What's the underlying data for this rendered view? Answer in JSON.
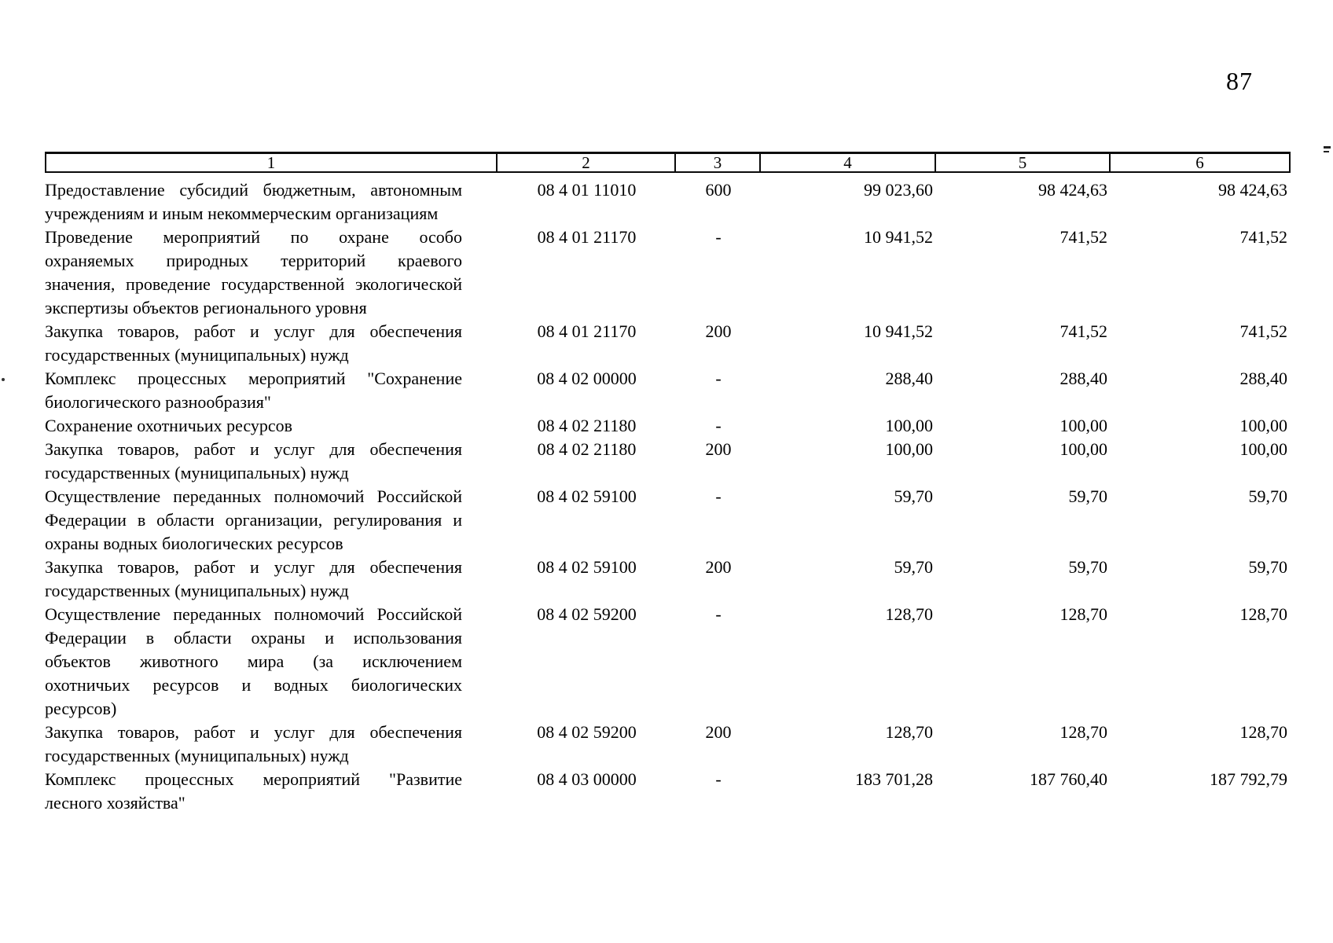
{
  "page": {
    "number": "87"
  },
  "table": {
    "header": [
      "1",
      "2",
      "3",
      "4",
      "5",
      "6"
    ],
    "rows": [
      {
        "name_lines": [
          "Предоставление субсидий бюджетным, автономным",
          "учреждениям и иным некоммерческим организациям"
        ],
        "code": "08 4 01 11010",
        "c3": "600",
        "c4": "99 023,60",
        "c5": "98 424,63",
        "c6": "98 424,63"
      },
      {
        "name_lines": [
          "Проведение мероприятий по охране особо",
          "охраняемых природных территорий краевого",
          "значения, проведение государственной экологической",
          "экспертизы объектов регионального уровня"
        ],
        "code": "08 4 01 21170",
        "c3": "-",
        "c4": "10 941,52",
        "c5": "741,52",
        "c6": "741,52"
      },
      {
        "name_lines": [
          "Закупка товаров, работ и услуг для обеспечения",
          "государственных (муниципальных) нужд"
        ],
        "code": "08 4 01 21170",
        "c3": "200",
        "c4": "10 941,52",
        "c5": "741,52",
        "c6": "741,52"
      },
      {
        "name_lines": [
          "Комплекс процессных мероприятий \"Сохранение",
          "биологического разнообразия\""
        ],
        "code": "08 4 02 00000",
        "c3": "-",
        "c4": "288,40",
        "c5": "288,40",
        "c6": "288,40"
      },
      {
        "name_lines": [
          "Сохранение охотничьих ресурсов"
        ],
        "code": "08 4 02 21180",
        "c3": "-",
        "c4": "100,00",
        "c5": "100,00",
        "c6": "100,00"
      },
      {
        "name_lines": [
          "Закупка товаров, работ и услуг для обеспечения",
          "государственных (муниципальных) нужд"
        ],
        "code": "08 4 02 21180",
        "c3": "200",
        "c4": "100,00",
        "c5": "100,00",
        "c6": "100,00"
      },
      {
        "name_lines": [
          "Осуществление переданных полномочий Российской",
          "Федерации в области организации, регулирования и",
          "охраны водных биологических ресурсов"
        ],
        "code": "08 4 02 59100",
        "c3": "-",
        "c4": "59,70",
        "c5": "59,70",
        "c6": "59,70"
      },
      {
        "name_lines": [
          "Закупка товаров, работ и услуг для обеспечения",
          "государственных (муниципальных) нужд"
        ],
        "code": "08 4 02 59100",
        "c3": "200",
        "c4": "59,70",
        "c5": "59,70",
        "c6": "59,70"
      },
      {
        "name_lines": [
          "Осуществление переданных полномочий Российской",
          "Федерации в области охраны и использования",
          "объектов животного мира (за исключением",
          "охотничьих ресурсов и водных биологических",
          "ресурсов)"
        ],
        "code": "08 4 02 59200",
        "c3": "-",
        "c4": "128,70",
        "c5": "128,70",
        "c6": "128,70"
      },
      {
        "name_lines": [
          "Закупка товаров, работ и услуг для обеспечения",
          "государственных (муниципальных) нужд"
        ],
        "code": "08 4 02 59200",
        "c3": "200",
        "c4": "128,70",
        "c5": "128,70",
        "c6": "128,70"
      },
      {
        "name_lines": [
          "Комплекс процессных мероприятий \"Развитие",
          "лесного хозяйства\""
        ],
        "code": "08 4 03 00000",
        "c3": "-",
        "c4": "183 701,28",
        "c5": "187 760,40",
        "c6": "187 792,79"
      }
    ]
  }
}
